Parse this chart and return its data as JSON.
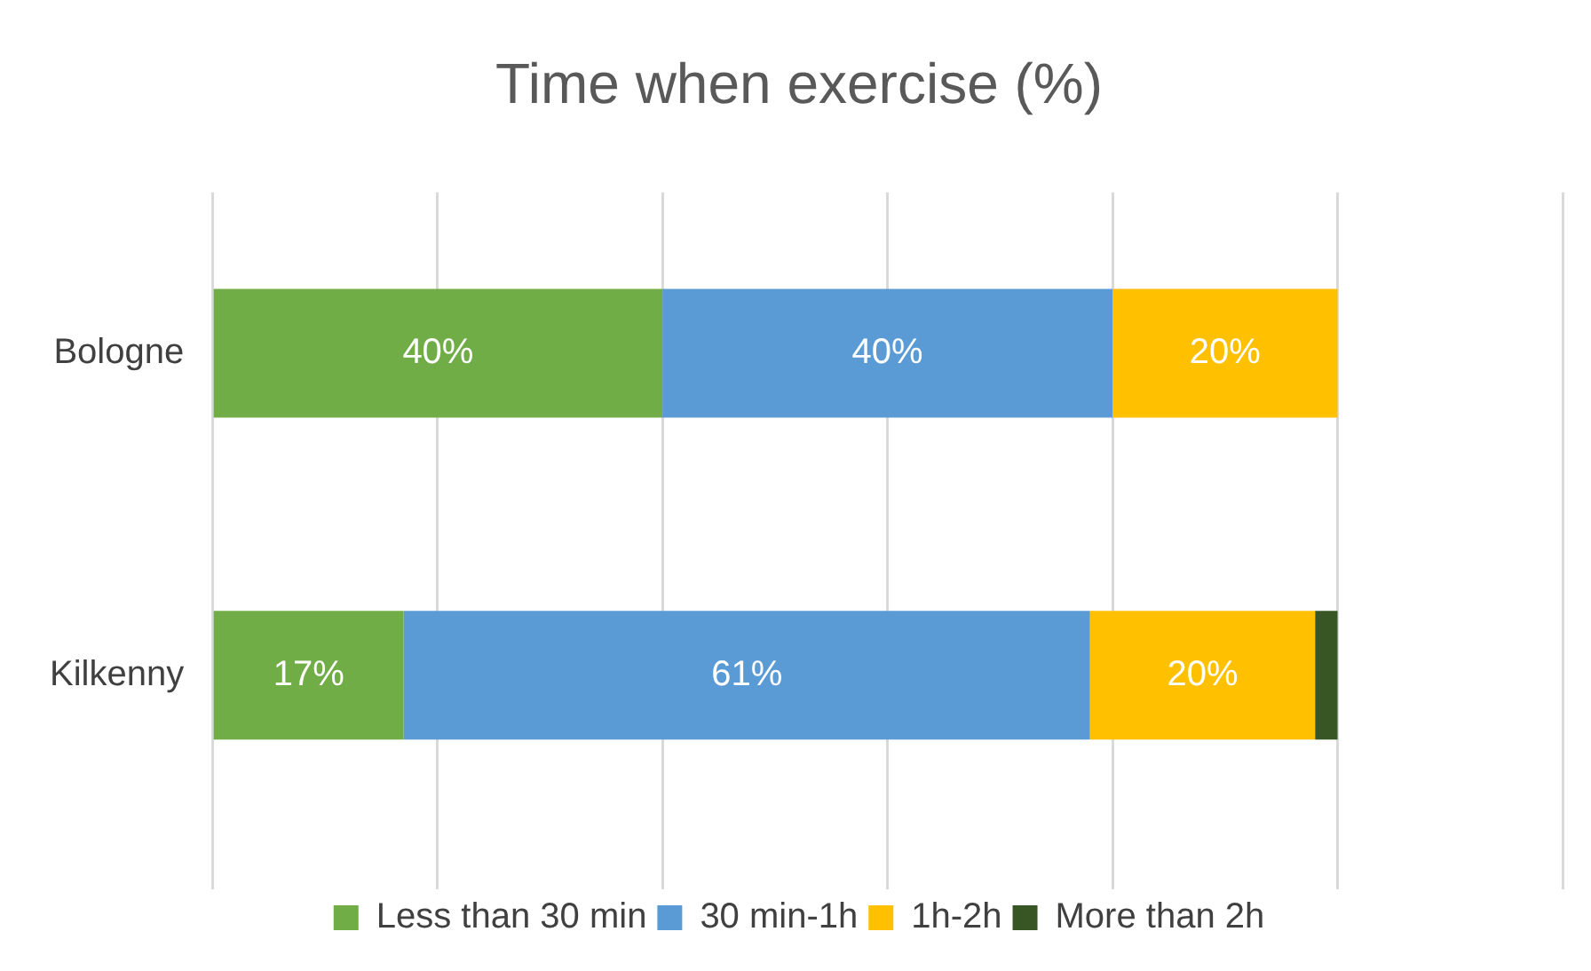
{
  "chart_data": {
    "type": "bar",
    "orientation": "horizontal",
    "stacked": true,
    "title": "Time when exercise (%)",
    "categories": [
      "Bologne",
      "Kilkenny"
    ],
    "series": [
      {
        "name": "Less than 30 min",
        "color": "#70ad47",
        "values": [
          40,
          17
        ],
        "value_labels": [
          "40%",
          "17%"
        ]
      },
      {
        "name": "30 min-1h",
        "color": "#5b9bd5",
        "values": [
          40,
          61
        ],
        "value_labels": [
          "40%",
          "61%"
        ]
      },
      {
        "name": "1h-2h",
        "color": "#ffc000",
        "values": [
          20,
          20
        ],
        "value_labels": [
          "20%",
          "20%"
        ]
      },
      {
        "name": "More than 2h",
        "color": "#375623",
        "values": [
          null,
          2
        ],
        "value_labels": [
          null,
          null
        ]
      }
    ],
    "xlim": [
      0,
      120
    ],
    "xticks": [
      {
        "value": 0,
        "label": null
      },
      {
        "value": 20,
        "label": null
      },
      {
        "value": 40,
        "label": null
      },
      {
        "value": 60,
        "label": null
      },
      {
        "value": 80,
        "label": null
      },
      {
        "value": 100,
        "label": null
      },
      {
        "value": 120,
        "label": null
      }
    ],
    "tick_labels": "y",
    "grid": "x",
    "legend": "bottom"
  }
}
